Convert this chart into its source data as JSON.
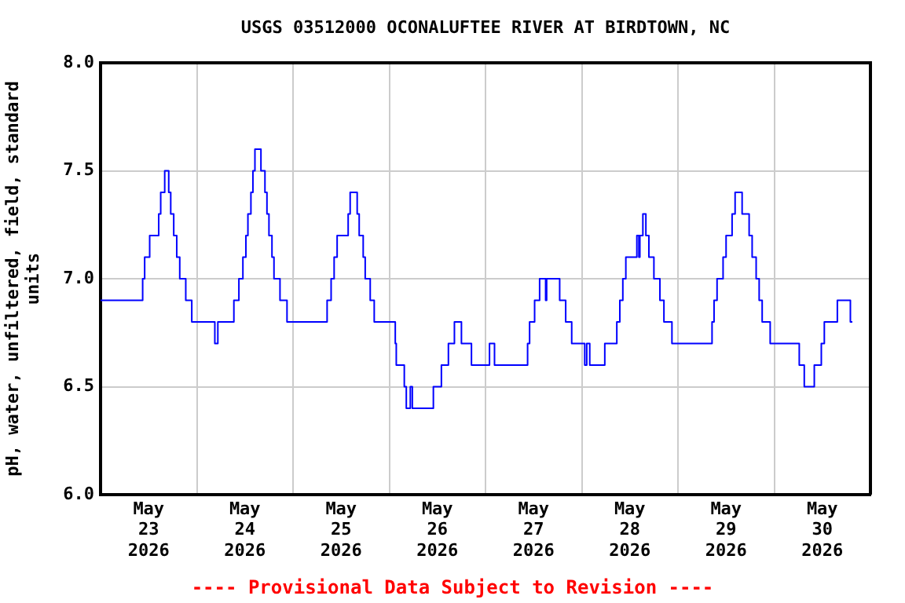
{
  "chart_data": {
    "type": "step",
    "title": "USGS 03512000 OCONALUFTEE RIVER AT BIRDTOWN, NC",
    "ylabel": "pH, water, unfiltered, field, standard units",
    "annotations": [
      "---- Provisional Data Subject to Revision ----"
    ],
    "x": [
      "2026-05-23T00:00",
      "2026-05-23T10:30",
      "2026-05-23T11:00",
      "2026-05-23T12:15",
      "2026-05-23T14:30",
      "2026-05-23T15:00",
      "2026-05-23T16:00",
      "2026-05-23T17:00",
      "2026-05-23T17:30",
      "2026-05-23T18:15",
      "2026-05-23T19:00",
      "2026-05-23T19:45",
      "2026-05-23T21:15",
      "2026-05-23T22:45",
      "2026-05-24T04:30",
      "2026-05-24T05:15",
      "2026-05-24T09:15",
      "2026-05-24T10:30",
      "2026-05-24T11:30",
      "2026-05-24T12:15",
      "2026-05-24T12:45",
      "2026-05-24T13:30",
      "2026-05-24T14:00",
      "2026-05-24T14:30",
      "2026-05-24T16:00",
      "2026-05-24T17:00",
      "2026-05-24T17:30",
      "2026-05-24T18:00",
      "2026-05-24T18:45",
      "2026-05-24T19:15",
      "2026-05-24T20:45",
      "2026-05-24T22:30",
      "2026-05-25T08:30",
      "2026-05-25T09:30",
      "2026-05-25T10:15",
      "2026-05-25T11:00",
      "2026-05-25T13:45",
      "2026-05-25T14:15",
      "2026-05-25T16:00",
      "2026-05-25T16:30",
      "2026-05-25T17:30",
      "2026-05-25T18:00",
      "2026-05-25T19:15",
      "2026-05-25T20:15",
      "2026-05-26T01:30",
      "2026-05-26T01:45",
      "2026-05-26T03:45",
      "2026-05-26T04:15",
      "2026-05-26T05:15",
      "2026-05-26T05:45",
      "2026-05-26T11:00",
      "2026-05-26T13:00",
      "2026-05-26T14:45",
      "2026-05-26T16:15",
      "2026-05-26T18:00",
      "2026-05-26T20:30",
      "2026-05-27T01:00",
      "2026-05-27T02:15",
      "2026-05-27T10:30",
      "2026-05-27T11:00",
      "2026-05-27T12:15",
      "2026-05-27T13:30",
      "2026-05-27T15:00",
      "2026-05-27T15:15",
      "2026-05-27T18:30",
      "2026-05-27T20:00",
      "2026-05-27T21:30",
      "2026-05-28T00:45",
      "2026-05-28T01:15",
      "2026-05-28T02:00",
      "2026-05-28T05:45",
      "2026-05-28T08:45",
      "2026-05-28T09:30",
      "2026-05-28T10:15",
      "2026-05-28T11:00",
      "2026-05-28T13:45",
      "2026-05-28T14:15",
      "2026-05-28T14:30",
      "2026-05-28T15:15",
      "2026-05-28T16:00",
      "2026-05-28T16:45",
      "2026-05-28T18:00",
      "2026-05-28T19:30",
      "2026-05-28T20:30",
      "2026-05-28T22:30",
      "2026-05-29T08:30",
      "2026-05-29T09:00",
      "2026-05-29T09:45",
      "2026-05-29T11:15",
      "2026-05-29T12:00",
      "2026-05-29T13:30",
      "2026-05-29T14:15",
      "2026-05-29T16:00",
      "2026-05-29T17:45",
      "2026-05-29T18:30",
      "2026-05-29T19:30",
      "2026-05-29T20:15",
      "2026-05-29T21:00",
      "2026-05-29T23:00",
      "2026-05-30T06:15",
      "2026-05-30T07:30",
      "2026-05-30T10:00",
      "2026-05-30T11:45",
      "2026-05-30T12:30",
      "2026-05-30T15:45",
      "2026-05-30T19:00",
      "2026-05-30T19:30"
    ],
    "series": [
      {
        "color": "#0000ff",
        "values": [
          6.9,
          7.0,
          7.1,
          7.2,
          7.3,
          7.4,
          7.5,
          7.4,
          7.3,
          7.2,
          7.1,
          7.0,
          6.9,
          6.8,
          6.7,
          6.8,
          6.9,
          7.0,
          7.1,
          7.2,
          7.3,
          7.4,
          7.5,
          7.6,
          7.5,
          7.4,
          7.3,
          7.2,
          7.1,
          7.0,
          6.9,
          6.8,
          6.9,
          7.0,
          7.1,
          7.2,
          7.3,
          7.4,
          7.3,
          7.2,
          7.1,
          7.0,
          6.9,
          6.8,
          6.7,
          6.6,
          6.5,
          6.4,
          6.5,
          6.4,
          6.5,
          6.6,
          6.7,
          6.8,
          6.7,
          6.6,
          6.7,
          6.6,
          6.7,
          6.8,
          6.9,
          7.0,
          6.9,
          7.0,
          6.9,
          6.8,
          6.7,
          6.6,
          6.7,
          6.6,
          6.7,
          6.8,
          6.9,
          7.0,
          7.1,
          7.2,
          7.1,
          7.2,
          7.3,
          7.2,
          7.1,
          7.0,
          6.9,
          6.8,
          6.7,
          6.8,
          6.9,
          7.0,
          7.1,
          7.2,
          7.3,
          7.4,
          7.3,
          7.2,
          7.1,
          7.0,
          6.9,
          6.8,
          6.7,
          6.6,
          6.5,
          6.6,
          6.7,
          6.8,
          6.9,
          6.8,
          6.8
        ]
      }
    ],
    "xlim": [
      "2026-05-23T00:00",
      "2026-05-31T00:00"
    ],
    "xticks": [
      {
        "value": "2026-05-23T12:00",
        "label": "May 23 2026"
      },
      {
        "value": "2026-05-24T00:00",
        "label": null
      },
      {
        "value": "2026-05-24T12:00",
        "label": "May 24 2026"
      },
      {
        "value": "2026-05-25T00:00",
        "label": null
      },
      {
        "value": "2026-05-25T12:00",
        "label": "May 25 2026"
      },
      {
        "value": "2026-05-26T00:00",
        "label": null
      },
      {
        "value": "2026-05-26T12:00",
        "label": "May 26 2026"
      },
      {
        "value": "2026-05-27T00:00",
        "label": null
      },
      {
        "value": "2026-05-27T12:00",
        "label": "May 27 2026"
      },
      {
        "value": "2026-05-28T00:00",
        "label": null
      },
      {
        "value": "2026-05-28T12:00",
        "label": "May 28 2026"
      },
      {
        "value": "2026-05-29T00:00",
        "label": null
      },
      {
        "value": "2026-05-29T12:00",
        "label": "May 29 2026"
      },
      {
        "value": "2026-05-30T00:00",
        "label": null
      },
      {
        "value": "2026-05-30T12:00",
        "label": "May 30 2026"
      }
    ],
    "ylim": [
      6.0,
      8.0
    ],
    "yticks": [
      {
        "value": 6.0,
        "label": "6.0"
      },
      {
        "value": 6.5,
        "label": "6.5"
      },
      {
        "value": 7.0,
        "label": "7.0"
      },
      {
        "value": 7.5,
        "label": "7.5"
      },
      {
        "value": 8.0,
        "label": "8.0"
      }
    ],
    "grid": true,
    "legend": false,
    "marker": "none",
    "line_style": "solid"
  }
}
